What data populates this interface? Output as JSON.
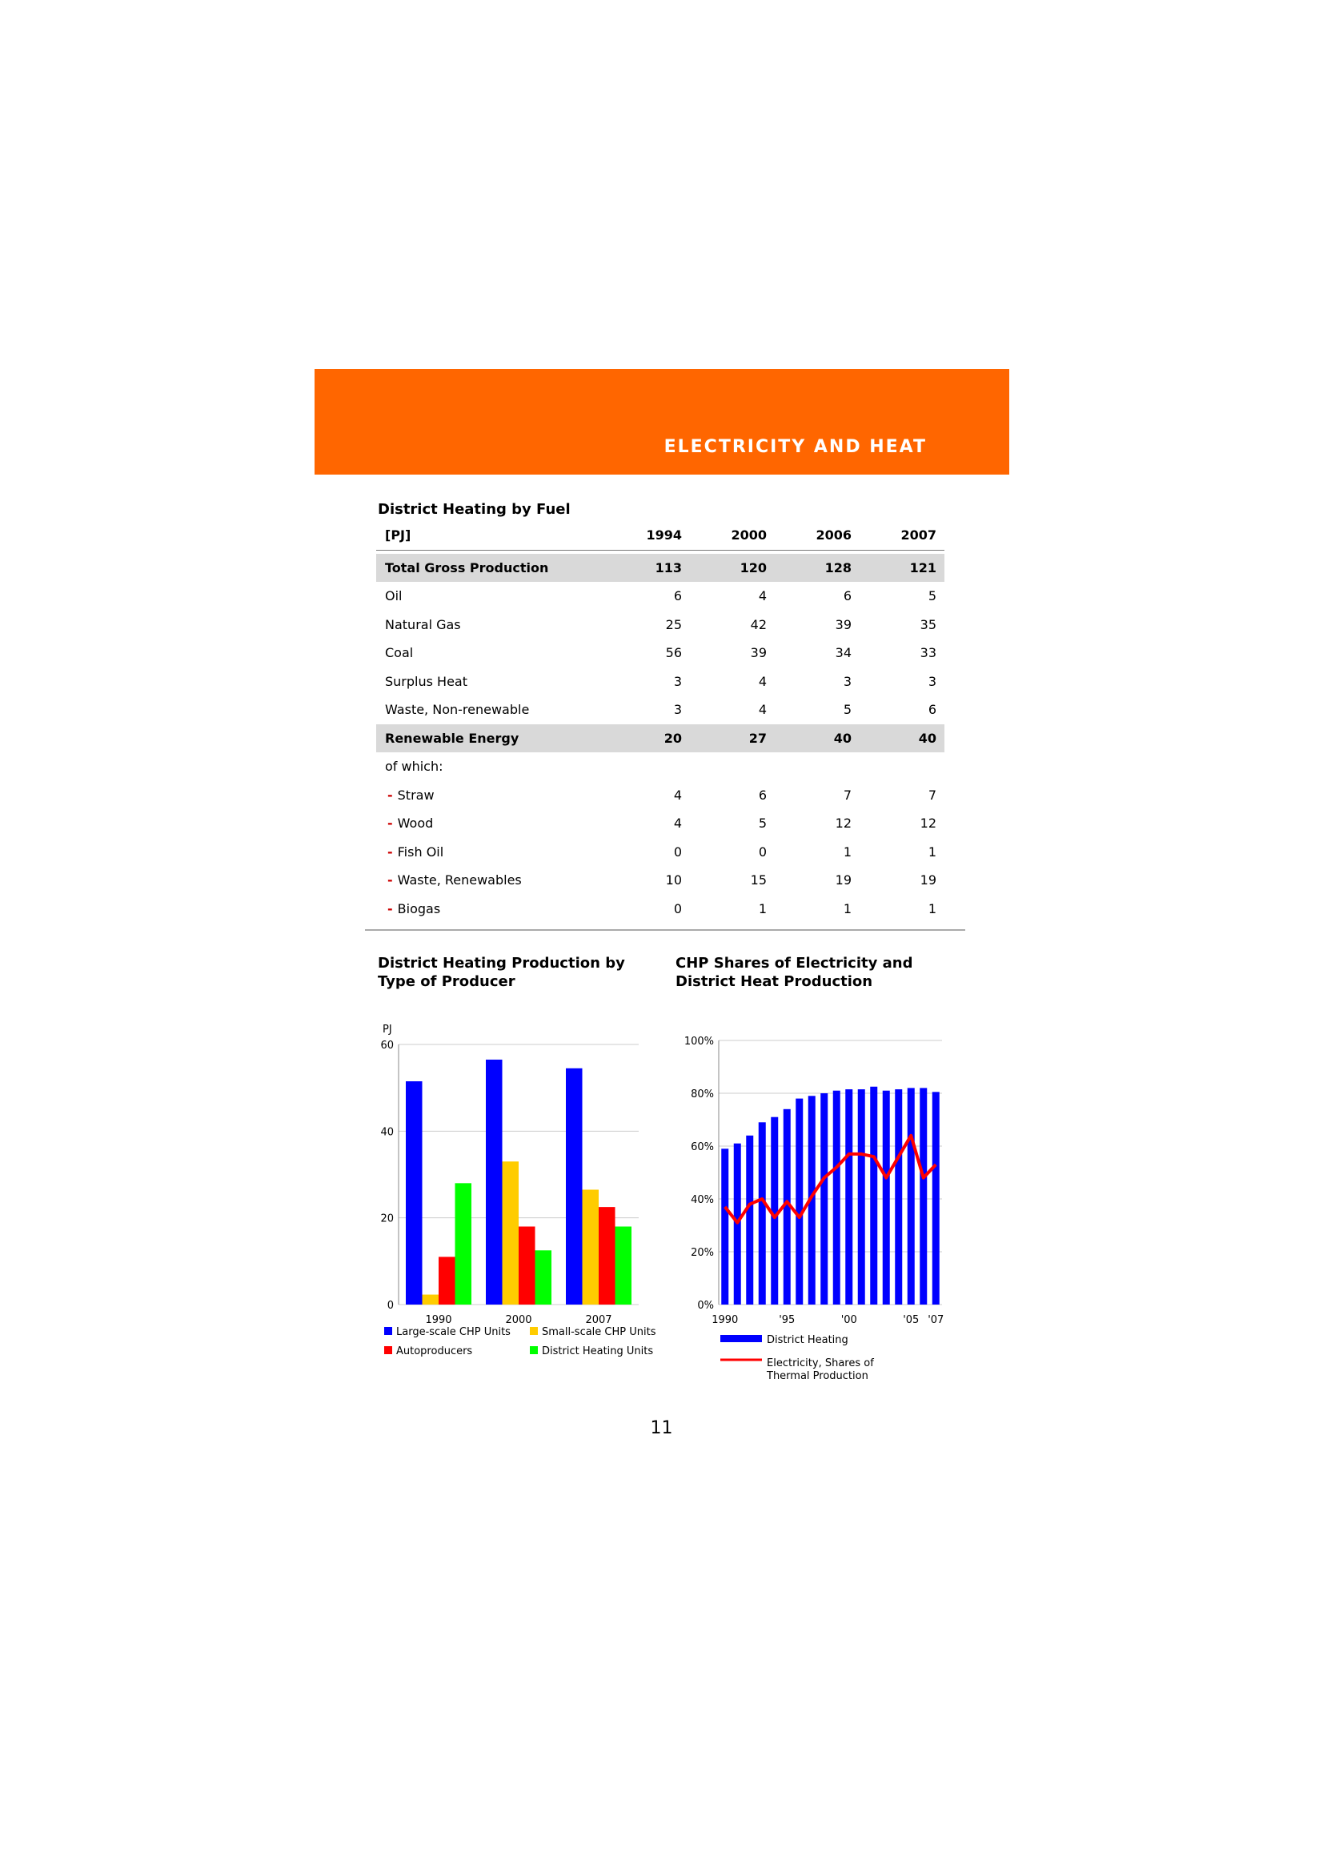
{
  "header": {
    "section_title": "ELECTRICITY AND HEAT",
    "accent_color": "#ff6600"
  },
  "table": {
    "title": "District Heating by Fuel",
    "unit_label": "[PJ]",
    "years": [
      "1994",
      "2000",
      "2006",
      "2007"
    ],
    "rows": [
      {
        "label": "Total Gross Production",
        "values": [
          "113",
          "120",
          "128",
          "121"
        ],
        "style": "bold"
      },
      {
        "label": "Oil",
        "values": [
          "6",
          "4",
          "6",
          "5"
        ]
      },
      {
        "label": "Natural Gas",
        "values": [
          "25",
          "42",
          "39",
          "35"
        ]
      },
      {
        "label": "Coal",
        "values": [
          "56",
          "39",
          "34",
          "33"
        ]
      },
      {
        "label": "Surplus Heat",
        "values": [
          "3",
          "4",
          "3",
          "3"
        ]
      },
      {
        "label": "Waste, Non-renewable",
        "values": [
          "3",
          "4",
          "5",
          "6"
        ]
      },
      {
        "label": "Renewable Energy",
        "values": [
          "20",
          "27",
          "40",
          "40"
        ],
        "style": "bold"
      },
      {
        "label": "of which:",
        "values": [
          "",
          "",
          "",
          ""
        ]
      },
      {
        "label": "Straw",
        "values": [
          "4",
          "6",
          "7",
          "7"
        ],
        "style": "sub"
      },
      {
        "label": "Wood",
        "values": [
          "4",
          "5",
          "12",
          "12"
        ],
        "style": "sub"
      },
      {
        "label": "Fish Oil",
        "values": [
          "0",
          "0",
          "1",
          "1"
        ],
        "style": "sub"
      },
      {
        "label": "Waste, Renewables",
        "values": [
          "10",
          "15",
          "19",
          "19"
        ],
        "style": "sub"
      },
      {
        "label": "Biogas",
        "values": [
          "0",
          "1",
          "1",
          "1"
        ],
        "style": "sub"
      }
    ]
  },
  "chart_data": [
    {
      "type": "bar",
      "title": "District Heating Production by Type of Producer",
      "ylabel": "PJ",
      "categories": [
        "1990",
        "2000",
        "2007"
      ],
      "ylim": [
        0,
        60
      ],
      "yticks": [
        "0",
        "20",
        "40",
        "60"
      ],
      "grid": true,
      "legend_placement": "bottom",
      "series": [
        {
          "name": "Large-scale CHP Units",
          "color": "#0000ff",
          "values": [
            51.5,
            56.5,
            54.5
          ]
        },
        {
          "name": "Small-scale CHP Units",
          "color": "#ffcc00",
          "values": [
            2.3,
            33,
            26.5
          ]
        },
        {
          "name": "Autoproducers",
          "color": "#ff0000",
          "values": [
            11,
            18,
            22.5
          ]
        },
        {
          "name": "District Heating Units",
          "color": "#00ff00",
          "values": [
            28,
            12.5,
            18
          ]
        }
      ]
    },
    {
      "type": "bar",
      "title": "CHP Shares of Electricity and District Heat Production",
      "x": [
        1990,
        1991,
        1992,
        1993,
        1994,
        1995,
        1996,
        1997,
        1998,
        1999,
        2000,
        2001,
        2002,
        2003,
        2004,
        2005,
        2006,
        2007
      ],
      "xticks": [
        "1990",
        "'95",
        "'00",
        "'05",
        "'07"
      ],
      "ylim": [
        0,
        100
      ],
      "yticks": [
        "0%",
        "20%",
        "40%",
        "60%",
        "80%",
        "100%"
      ],
      "grid": true,
      "legend_placement": "bottom",
      "series": [
        {
          "name": "District Heating",
          "kind": "bar",
          "color": "#0000ff",
          "values": [
            59,
            61,
            64,
            69,
            71,
            74,
            78,
            79,
            80,
            81,
            81.5,
            81.5,
            82.5,
            81,
            81.5,
            82,
            82,
            80.5
          ]
        },
        {
          "name": "Electricity, Shares of Thermal Production",
          "kind": "line",
          "color": "#ff0000",
          "values": [
            37,
            31,
            38,
            40,
            33,
            39,
            33,
            41,
            48,
            52,
            57,
            57,
            56,
            48,
            56,
            64,
            48,
            53
          ]
        }
      ]
    }
  ],
  "page_number": "11"
}
